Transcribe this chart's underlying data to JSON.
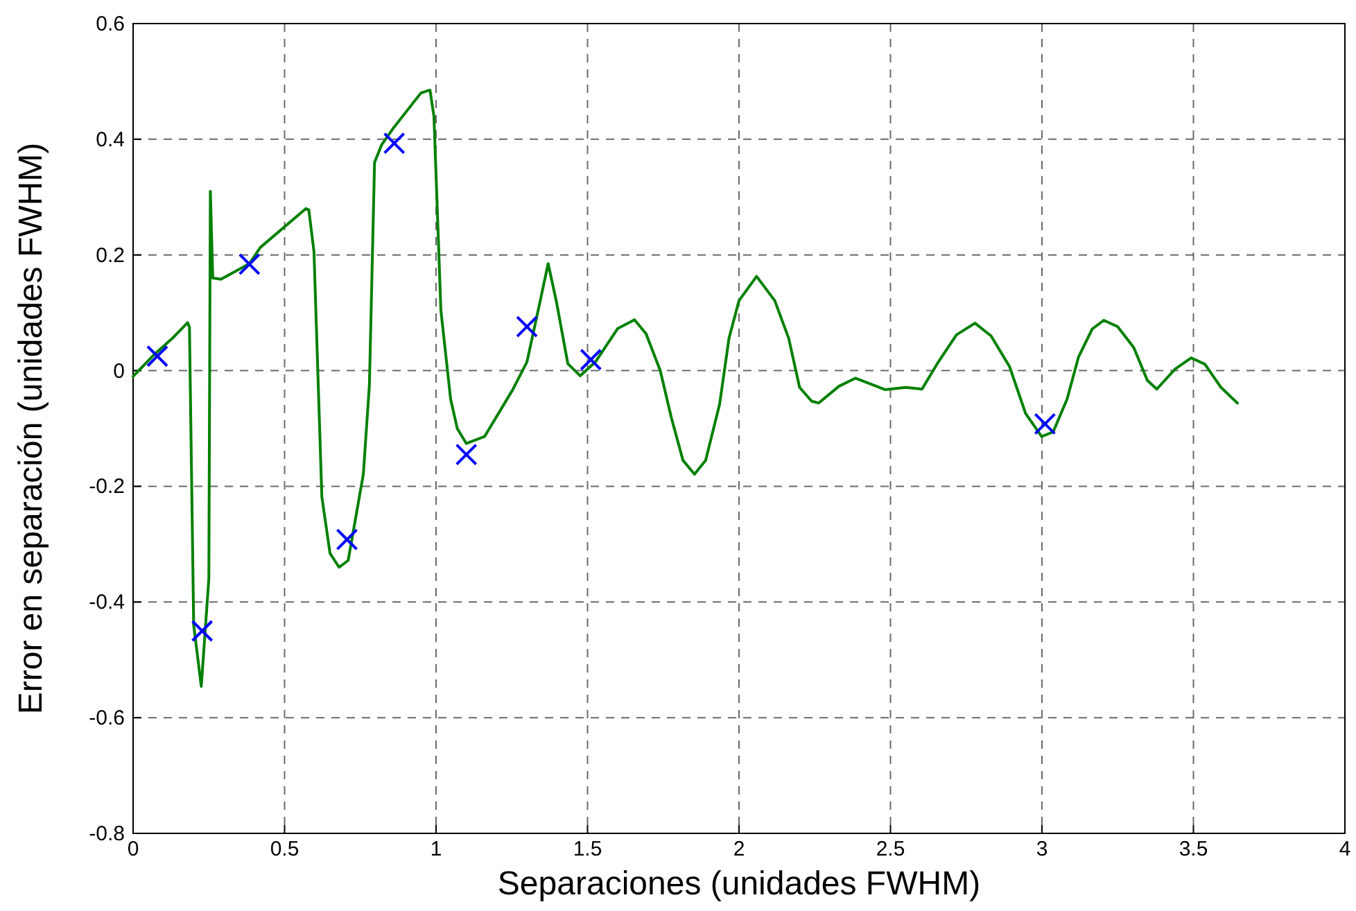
{
  "chart_data": {
    "type": "line",
    "xlabel": "Separaciones (unidades FWHM)",
    "ylabel": "Error en separación (unidades FWHM)",
    "xlim": [
      0,
      4
    ],
    "ylim": [
      -0.8,
      0.6
    ],
    "xticks": [
      0,
      0.5,
      1,
      1.5,
      2,
      2.5,
      3,
      3.5,
      4
    ],
    "yticks": [
      -0.8,
      -0.6,
      -0.4,
      -0.2,
      0,
      0.2,
      0.4,
      0.6
    ],
    "grid": true,
    "series": [
      {
        "color": "#008000",
        "marker": "none",
        "line_style": "solid",
        "x": [
          0,
          0.068,
          0.13,
          0.18,
          0.186,
          0.2,
          0.225,
          0.25,
          0.255,
          0.263,
          0.29,
          0.384,
          0.42,
          0.57,
          0.58,
          0.597,
          0.623,
          0.65,
          0.68,
          0.71,
          0.76,
          0.78,
          0.797,
          0.82,
          0.86,
          0.95,
          0.98,
          0.993,
          1.016,
          1.048,
          1.07,
          1.1,
          1.16,
          1.253,
          1.3,
          1.344,
          1.37,
          1.397,
          1.435,
          1.476,
          1.526,
          1.6,
          1.655,
          1.693,
          1.74,
          1.777,
          1.815,
          1.853,
          1.89,
          1.936,
          1.967,
          2.0,
          2.058,
          2.118,
          2.164,
          2.2,
          2.24,
          2.263,
          2.33,
          2.384,
          2.483,
          2.551,
          2.604,
          2.658,
          2.718,
          2.779,
          2.832,
          2.893,
          2.946,
          2.999,
          3.037,
          3.083,
          3.121,
          3.166,
          3.204,
          3.25,
          3.303,
          3.348,
          3.379,
          3.44,
          3.493,
          3.538,
          3.591,
          3.645
        ],
        "values": [
          -0.01,
          0.027,
          0.056,
          0.083,
          0.075,
          -0.44,
          -0.546,
          -0.36,
          0.31,
          0.16,
          0.158,
          0.185,
          0.213,
          0.28,
          0.278,
          0.206,
          -0.218,
          -0.316,
          -0.34,
          -0.328,
          -0.179,
          -0.025,
          0.36,
          0.39,
          0.42,
          0.48,
          0.485,
          0.44,
          0.104,
          -0.049,
          -0.1,
          -0.126,
          -0.114,
          -0.033,
          0.015,
          0.121,
          0.185,
          0.12,
          0.012,
          -0.009,
          0.015,
          0.073,
          0.088,
          0.064,
          0,
          -0.082,
          -0.155,
          -0.179,
          -0.155,
          -0.058,
          0.056,
          0.121,
          0.163,
          0.121,
          0.056,
          -0.029,
          -0.053,
          -0.056,
          -0.027,
          -0.013,
          -0.033,
          -0.029,
          -0.032,
          0.015,
          0.062,
          0.082,
          0.06,
          0.007,
          -0.074,
          -0.114,
          -0.106,
          -0.049,
          0.024,
          0.072,
          0.087,
          0.076,
          0.04,
          -0.017,
          -0.032,
          0.003,
          0.022,
          0.011,
          -0.029,
          -0.056
        ]
      },
      {
        "type": "scatter",
        "color": "#0000ff",
        "marker": "cross",
        "x": [
          0.08,
          0.228,
          0.384,
          0.706,
          0.862,
          1.1,
          1.3,
          1.511,
          3.01
        ],
        "values": [
          0.025,
          -0.45,
          0.184,
          -0.292,
          0.393,
          -0.145,
          0.076,
          0.019,
          -0.092
        ]
      }
    ]
  }
}
